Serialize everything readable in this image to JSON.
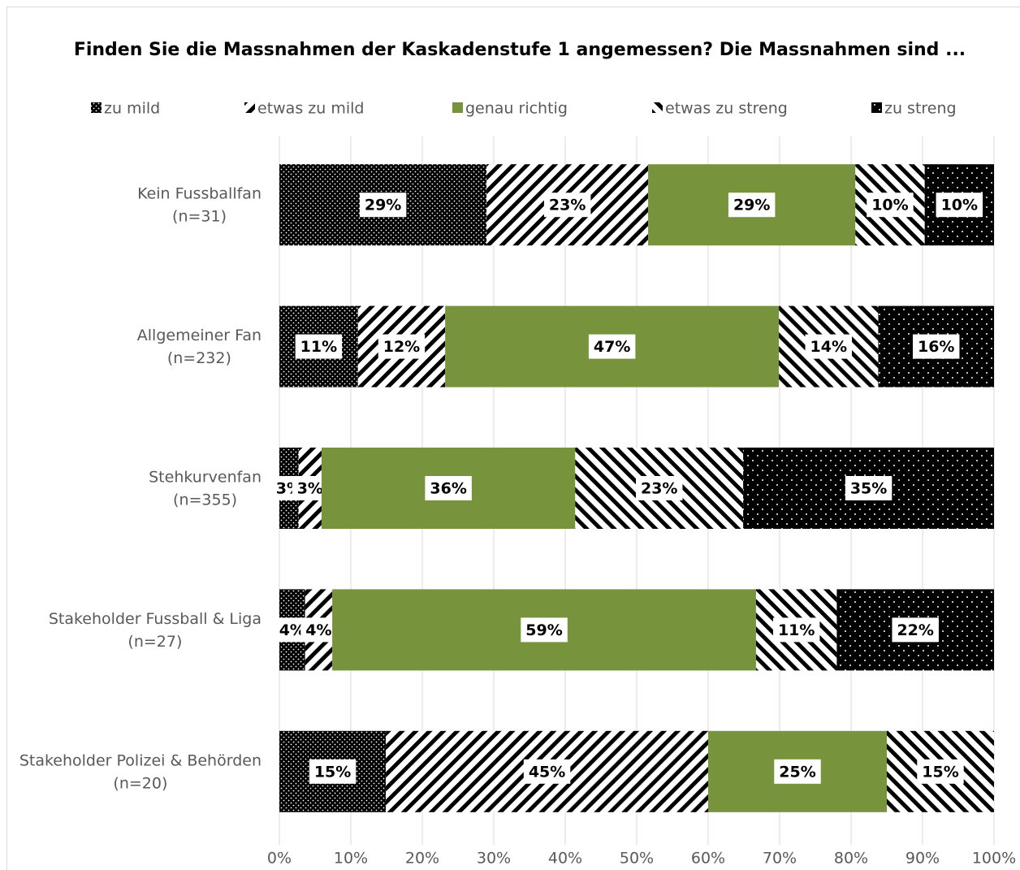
{
  "chart_data": {
    "type": "stacked-bar-horizontal",
    "title": "Finden Sie die Massnahmen der Kaskadenstufe 1 angemessen? Die Massnahmen sind ...",
    "categories": [
      [
        "Kein Fussballfan",
        "(n=31)"
      ],
      [
        "Allgemeiner Fan",
        "(n=232)"
      ],
      [
        "Stehkurvenfan",
        "(n=355)"
      ],
      [
        "Stakeholder Fussball & Liga",
        "(n=27)"
      ],
      [
        "Stakeholder Polizei & Behörden",
        "(n=20)"
      ]
    ],
    "series": [
      {
        "name": "zu mild",
        "pattern": "dots-dense",
        "values": [
          29.0,
          11.0,
          2.7,
          3.6,
          14.9
        ],
        "value_labels": [
          "29%",
          "11%",
          "3%",
          "4%",
          "15%"
        ]
      },
      {
        "name": "etwas zu mild",
        "pattern": "stripes-back",
        "values": [
          22.6,
          12.2,
          3.2,
          3.8,
          45.1
        ],
        "value_labels": [
          "23%",
          "12%",
          "3%",
          "4%",
          "45%"
        ]
      },
      {
        "name": "genau richtig",
        "color": "#77933c",
        "values": [
          29.0,
          46.7,
          35.5,
          59.3,
          25.0
        ],
        "value_labels": [
          "29%",
          "47%",
          "36%",
          "59%",
          "25%"
        ]
      },
      {
        "name": "etwas zu streng",
        "pattern": "stripes-forward",
        "values": [
          9.7,
          13.9,
          23.5,
          11.3,
          15.0
        ],
        "value_labels": [
          "10%",
          "14%",
          "23%",
          "11%",
          "15%"
        ]
      },
      {
        "name": "zu streng",
        "pattern": "dots-sparse",
        "values": [
          9.7,
          16.2,
          35.1,
          22.0,
          null
        ],
        "value_labels": [
          "10%",
          "16%",
          "35%",
          "22%",
          null
        ]
      }
    ],
    "xlim": [
      0,
      100
    ],
    "xticks": [
      {
        "value": 0,
        "label": "0%"
      },
      {
        "value": 10,
        "label": "10%"
      },
      {
        "value": 20,
        "label": "20%"
      },
      {
        "value": 30,
        "label": "30%"
      },
      {
        "value": 40,
        "label": "40%"
      },
      {
        "value": 50,
        "label": "50%"
      },
      {
        "value": 60,
        "label": "60%"
      },
      {
        "value": 70,
        "label": "70%"
      },
      {
        "value": 80,
        "label": "80%"
      },
      {
        "value": 90,
        "label": "90%"
      },
      {
        "value": 100,
        "label": "100%"
      }
    ],
    "grid": true,
    "legend": "top"
  }
}
